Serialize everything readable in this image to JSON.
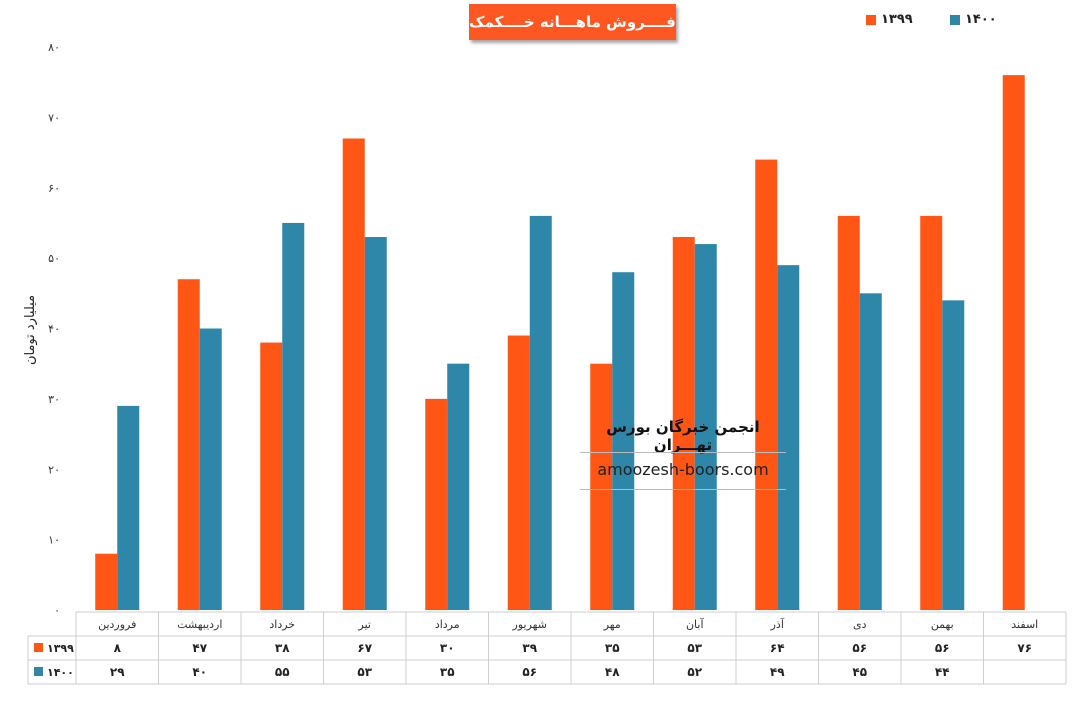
{
  "chart_data": {
    "type": "bar",
    "title": "فــــروش ماهـــانه خــــکمک",
    "ylabel": "میلیارد تومان",
    "ylim": [
      0,
      80
    ],
    "yticks": [
      "۰",
      "۱۰",
      "۲۰",
      "۳۰",
      "۴۰",
      "۵۰",
      "۶۰",
      "۷۰",
      "۸۰"
    ],
    "categories": [
      "فروردین",
      "اردیبهشت",
      "خرداد",
      "تیر",
      "مرداد",
      "شهریور",
      "مهر",
      "آبان",
      "آذر",
      "دی",
      "بهمن",
      "اسفند"
    ],
    "series": [
      {
        "name": "۱۳۹۹",
        "color": "#ff5515",
        "values": [
          8,
          47,
          38,
          67,
          30,
          39,
          35,
          53,
          64,
          56,
          56,
          76
        ],
        "labels": [
          "۸",
          "۴۷",
          "۳۸",
          "۶۷",
          "۳۰",
          "۳۹",
          "۳۵",
          "۵۳",
          "۶۴",
          "۵۶",
          "۵۶",
          "۷۶"
        ]
      },
      {
        "name": "۱۴۰۰",
        "color": "#2e86a8",
        "values": [
          29,
          40,
          55,
          53,
          35,
          56,
          48,
          52,
          49,
          45,
          44,
          null
        ],
        "labels": [
          "۲۹",
          "۴۰",
          "۵۵",
          "۵۳",
          "۳۵",
          "۵۶",
          "۴۸",
          "۵۲",
          "۴۹",
          "۴۵",
          "۴۴",
          ""
        ]
      }
    ],
    "legend": "top-right",
    "grid": false
  },
  "watermark": {
    "title": "انجمن خبرگان بورس تهـــران",
    "url": "amoozesh-boors.com"
  }
}
